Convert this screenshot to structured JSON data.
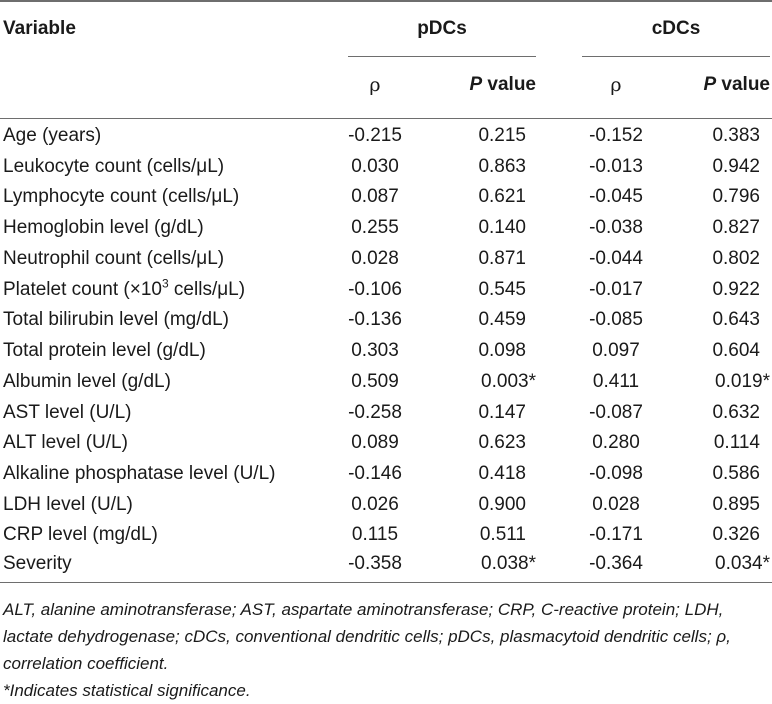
{
  "table": {
    "header": {
      "variable": "Variable",
      "group1": "pDCs",
      "group2": "cDCs",
      "rho": "ρ",
      "p_italic": "P",
      "p_rest": " value"
    },
    "rows": [
      {
        "variable": "Age (years)",
        "pdc_rho": "-0.215",
        "pdc_p": "0.215",
        "cdc_rho": "-0.152",
        "cdc_p": "0.383"
      },
      {
        "variable": "Leukocyte count (cells/μL)",
        "pdc_rho": "0.030",
        "pdc_p": "0.863",
        "cdc_rho": "-0.013",
        "cdc_p": "0.942"
      },
      {
        "variable": "Lymphocyte count (cells/μL)",
        "pdc_rho": "0.087",
        "pdc_p": "0.621",
        "cdc_rho": "-0.045",
        "cdc_p": "0.796"
      },
      {
        "variable": "Hemoglobin level (g/dL)",
        "pdc_rho": "0.255",
        "pdc_p": "0.140",
        "cdc_rho": "-0.038",
        "cdc_p": "0.827"
      },
      {
        "variable": "Neutrophil count (cells/μL)",
        "pdc_rho": "0.028",
        "pdc_p": "0.871",
        "cdc_rho": "-0.044",
        "cdc_p": "0.802"
      },
      {
        "variable": "Platelet count (×10",
        "variable_sup": "3",
        "variable_tail": " cells/μL)",
        "pdc_rho": "-0.106",
        "pdc_p": "0.545",
        "cdc_rho": "-0.017",
        "cdc_p": "0.922"
      },
      {
        "variable": "Total bilirubin level (mg/dL)",
        "pdc_rho": "-0.136",
        "pdc_p": "0.459",
        "cdc_rho": "-0.085",
        "cdc_p": "0.643"
      },
      {
        "variable": "Total protein level (g/dL)",
        "pdc_rho": "0.303",
        "pdc_p": "0.098",
        "cdc_rho": "0.097",
        "cdc_p": "0.604"
      },
      {
        "variable": "Albumin level (g/dL)",
        "pdc_rho": "0.509",
        "pdc_p": "0.003*",
        "cdc_rho": "0.411",
        "cdc_p": "0.019*"
      },
      {
        "variable": "AST level (U/L)",
        "pdc_rho": "-0.258",
        "pdc_p": "0.147",
        "cdc_rho": "-0.087",
        "cdc_p": "0.632"
      },
      {
        "variable": "ALT level (U/L)",
        "pdc_rho": "0.089",
        "pdc_p": "0.623",
        "cdc_rho": "0.280",
        "cdc_p": "0.114"
      },
      {
        "variable": "Alkaline phosphatase level (U/L)",
        "pdc_rho": "-0.146",
        "pdc_p": "0.418",
        "cdc_rho": "-0.098",
        "cdc_p": "0.586"
      },
      {
        "variable": "LDH level (U/L)",
        "pdc_rho": "0.026",
        "pdc_p": "0.900",
        "cdc_rho": "0.028",
        "cdc_p": "0.895"
      },
      {
        "variable": "CRP level (mg/dL)",
        "pdc_rho": "0.115",
        "pdc_p": "0.511",
        "cdc_rho": "-0.171",
        "cdc_p": "0.326"
      },
      {
        "variable": "Severity",
        "pdc_rho": "-0.358",
        "pdc_p": "0.038*",
        "cdc_rho": "-0.364",
        "cdc_p": "0.034*"
      }
    ]
  },
  "footnotes": {
    "abbreviations": "ALT, alanine aminotransferase; AST, aspartate aminotransferase; CRP, C-reactive protein; LDH, lactate dehydrogenase; cDCs, conventional dendritic cells; pDCs, plasmacytoid dendritic cells; ρ, correlation coefficient.",
    "significance": "*Indicates statistical significance."
  }
}
